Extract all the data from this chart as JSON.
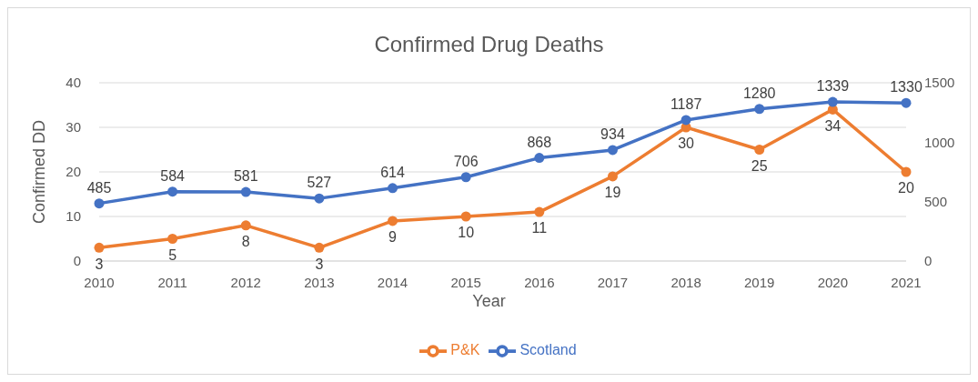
{
  "chart_data": {
    "type": "line",
    "title": "Confirmed Drug Deaths",
    "xlabel": "Year",
    "ylabel": "Confirmed DD",
    "categories": [
      "2010",
      "2011",
      "2012",
      "2013",
      "2014",
      "2015",
      "2016",
      "2017",
      "2018",
      "2019",
      "2020",
      "2021"
    ],
    "series": [
      {
        "name": "P&K",
        "color": "#ed7d31",
        "values": [
          3,
          5,
          8,
          3,
          9,
          10,
          11,
          19,
          30,
          25,
          34,
          20
        ]
      },
      {
        "name": "Scotland",
        "color": "#4472c4",
        "axis": "y2",
        "values": [
          485,
          584,
          581,
          527,
          614,
          706,
          868,
          934,
          1187,
          1280,
          1339,
          1330
        ]
      }
    ],
    "ylim": [
      0,
      40
    ],
    "yticks": [
      0,
      10,
      20,
      30,
      40
    ],
    "y2lim": [
      0,
      1500
    ],
    "y2ticks": [
      0,
      500,
      1000,
      1500
    ],
    "grid": "y",
    "legend": "bottom",
    "marker": "circle",
    "line_style": "solid",
    "data_labels": true
  }
}
